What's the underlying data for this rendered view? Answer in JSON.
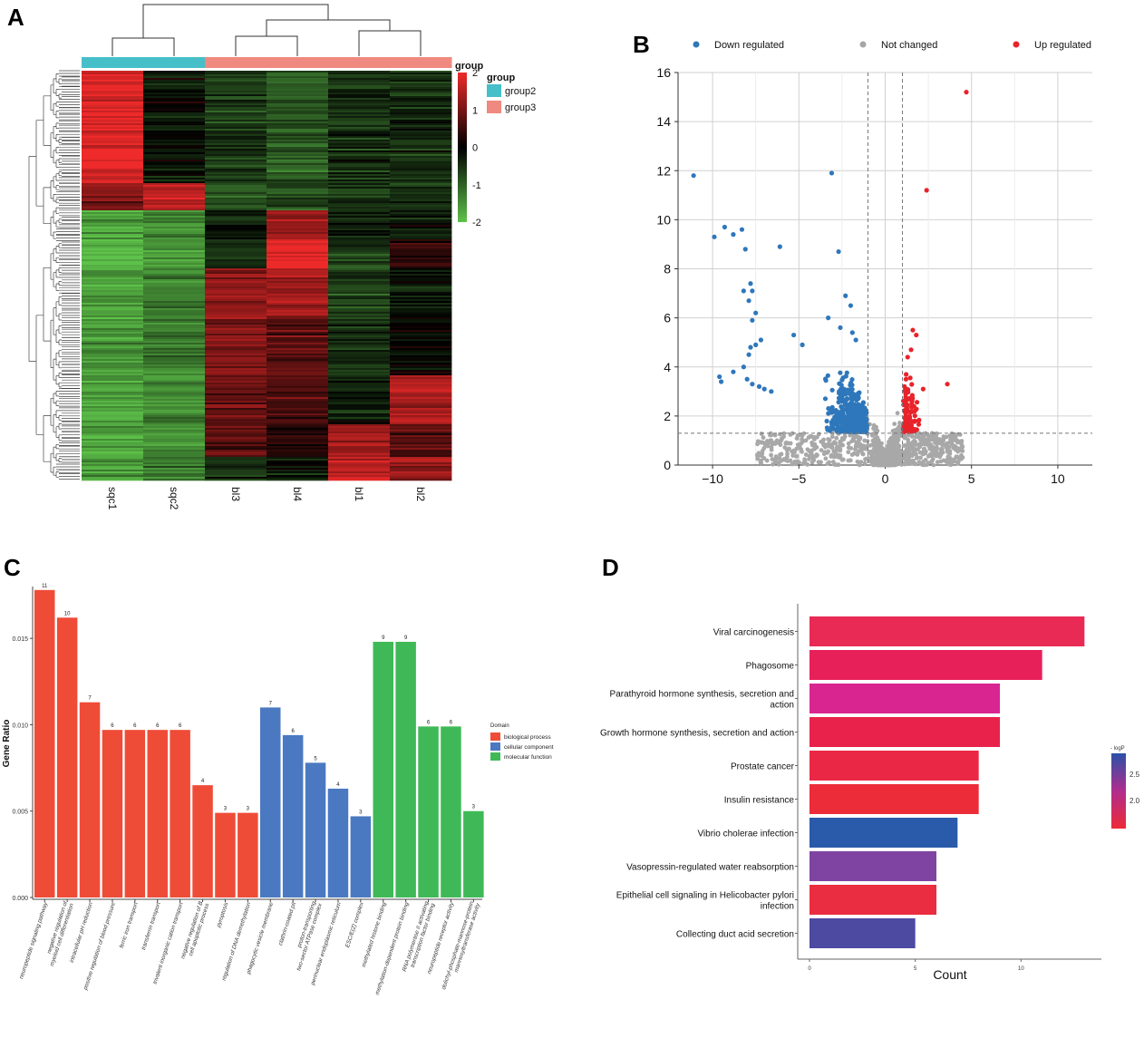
{
  "panels": {
    "A": "A",
    "B": "B",
    "C": "C",
    "D": "D"
  },
  "chart_data": [
    {
      "panel": "A",
      "type": "heatmap",
      "title": "",
      "columns": [
        "sqc1",
        "sqc2",
        "bl3",
        "bl4",
        "bl1",
        "bl2"
      ],
      "column_groups": [
        "group2",
        "group2",
        "group3",
        "group3",
        "group3",
        "group3"
      ],
      "annotation_title": "group",
      "color_scale": {
        "ticks": [
          2,
          1,
          0,
          -1,
          -2
        ],
        "low": "#5ec24a",
        "mid": "#000000",
        "high": "#ee2a2a"
      },
      "group_legend": {
        "title": "group",
        "items": [
          {
            "label": "group2",
            "color": "#46bfc9"
          },
          {
            "label": "group3",
            "color": "#f0897f"
          }
        ]
      },
      "blocks": [
        {
          "rows": 0.27,
          "values": [
            1.9,
            -0.2,
            -0.6,
            -0.9,
            -0.5,
            -0.4
          ]
        },
        {
          "rows": 0.07,
          "values": [
            1.0,
            1.6,
            -0.9,
            -0.7,
            -0.6,
            -0.6
          ]
        },
        {
          "rows": 0.07,
          "values": [
            -1.7,
            -1.4,
            -0.3,
            1.3,
            -0.4,
            -0.3
          ]
        },
        {
          "rows": 0.07,
          "values": [
            -1.8,
            -1.5,
            -0.5,
            2.0,
            -0.6,
            0.3
          ]
        },
        {
          "rows": 0.12,
          "values": [
            -1.6,
            -1.3,
            1.2,
            1.3,
            -0.7,
            -0.3
          ]
        },
        {
          "rows": 0.14,
          "values": [
            -1.5,
            -1.2,
            1.1,
            0.8,
            -0.5,
            -0.1
          ]
        },
        {
          "rows": 0.12,
          "values": [
            -1.6,
            -1.4,
            0.9,
            0.6,
            -0.3,
            1.4
          ]
        },
        {
          "rows": 0.08,
          "values": [
            -1.7,
            -1.5,
            0.7,
            0.3,
            1.3,
            0.8
          ]
        },
        {
          "rows": 0.06,
          "values": [
            -1.5,
            -1.3,
            -0.5,
            -0.2,
            1.6,
            1.2
          ]
        }
      ]
    },
    {
      "panel": "B",
      "type": "scatter",
      "title": "",
      "xlabel": "",
      "ylabel": "",
      "xlim": [
        -12,
        12
      ],
      "ylim": [
        0,
        16
      ],
      "xticks": [
        -10,
        -5,
        0,
        5,
        10
      ],
      "yticks": [
        0,
        2,
        4,
        6,
        8,
        10,
        12,
        14,
        16
      ],
      "vlines": [
        -1,
        1
      ],
      "hline": 1.3,
      "grid": true,
      "legend": [
        {
          "label": "Down regulated",
          "color": "#2e77bb"
        },
        {
          "label": "Not changed",
          "color": "#a6a6a6"
        },
        {
          "label": "Up regulated",
          "color": "#e8232a"
        }
      ],
      "series": [
        {
          "name": "Down regulated",
          "color": "#2e77bb",
          "points": [
            [
              -11.1,
              11.8
            ],
            [
              -3.1,
              11.9
            ],
            [
              -9.9,
              9.3
            ],
            [
              -9.3,
              9.7
            ],
            [
              -8.8,
              9.4
            ],
            [
              -8.3,
              9.6
            ],
            [
              -8.1,
              8.8
            ],
            [
              -6.1,
              8.9
            ],
            [
              -2.7,
              8.7
            ],
            [
              -8.2,
              7.1
            ],
            [
              -7.8,
              7.4
            ],
            [
              -7.7,
              7.1
            ],
            [
              -7.9,
              6.7
            ],
            [
              -7.5,
              6.2
            ],
            [
              -7.7,
              5.9
            ],
            [
              -7.2,
              5.1
            ],
            [
              -7.5,
              4.9
            ],
            [
              -7.8,
              4.8
            ],
            [
              -7.9,
              4.5
            ],
            [
              -8.2,
              4.0
            ],
            [
              -8.8,
              3.8
            ],
            [
              -9.6,
              3.6
            ],
            [
              -9.5,
              3.4
            ],
            [
              -8.0,
              3.5
            ],
            [
              -7.7,
              3.3
            ],
            [
              -7.3,
              3.2
            ],
            [
              -7.0,
              3.1
            ],
            [
              -6.6,
              3.0
            ],
            [
              -5.3,
              5.3
            ],
            [
              -4.8,
              4.9
            ],
            [
              -2.3,
              6.9
            ],
            [
              -2.0,
              6.5
            ],
            [
              -3.3,
              6.0
            ],
            [
              -2.6,
              5.6
            ],
            [
              -1.9,
              5.4
            ],
            [
              -1.7,
              5.1
            ]
          ]
        },
        {
          "name": "Up regulated",
          "color": "#e8232a",
          "points": [
            [
              4.7,
              15.2
            ],
            [
              2.4,
              11.2
            ],
            [
              1.6,
              5.5
            ],
            [
              1.8,
              5.3
            ],
            [
              1.5,
              4.7
            ],
            [
              1.3,
              4.4
            ],
            [
              3.6,
              3.3
            ],
            [
              2.2,
              3.1
            ],
            [
              1.2,
              2.0
            ]
          ]
        }
      ]
    },
    {
      "panel": "C",
      "type": "bar",
      "title": "",
      "xlabel": "",
      "ylabel": "Gene Ratio",
      "ylim": [
        0,
        0.018
      ],
      "yticks": [
        0.0,
        0.005,
        0.01,
        0.015
      ],
      "ytick_labels": [
        "0.000",
        "0.005",
        "0.010",
        "0.015"
      ],
      "legend": {
        "title": "Domain",
        "items": [
          {
            "label": "biological process",
            "color": "#ef4c37"
          },
          {
            "label": "cellular component",
            "color": "#4b79c1"
          },
          {
            "label": "molecular function",
            "color": "#3fb957"
          }
        ]
      },
      "categories": [
        "neuropeptide signaling pathway",
        "negative regulation of myeloid cell differentiation",
        "intracellular pH reduction",
        "positive regulation of blood pressure",
        "ferric iron transport",
        "transferrin transport",
        "trivalent inorganic cation transport",
        "negative regulation of B cell apoptotic process",
        "pyroptosis",
        "regulation of DNA demethylation",
        "phagocytic vesicle membrane",
        "clathrin-coated pit",
        "proton-transporting two-sector ATPase complex",
        "perinuclear endoplasmic reticulum",
        "ESC/E(Z) complex",
        "methylated histone binding",
        "methylation-dependent protein binding",
        "RNA polymerase II activating transcription factor binding",
        "neuropeptide receptor activity",
        "dolichyl-phosphate-mannose-protein mannosyltransferase activity"
      ],
      "values": [
        0.0178,
        0.0162,
        0.0113,
        0.0097,
        0.0097,
        0.0097,
        0.0097,
        0.0065,
        0.0049,
        0.0049,
        0.011,
        0.0094,
        0.0078,
        0.0063,
        0.0047,
        0.0148,
        0.0148,
        0.0099,
        0.0099,
        0.005
      ],
      "counts": [
        "11",
        "10",
        "7",
        "6",
        "6",
        "6",
        "6",
        "4",
        "3",
        "3",
        "7",
        "6",
        "5",
        "4",
        "3",
        "9",
        "9",
        "6",
        "6",
        "3"
      ],
      "domains": [
        "biological process",
        "biological process",
        "biological process",
        "biological process",
        "biological process",
        "biological process",
        "biological process",
        "biological process",
        "biological process",
        "biological process",
        "cellular component",
        "cellular component",
        "cellular component",
        "cellular component",
        "cellular component",
        "molecular function",
        "molecular function",
        "molecular function",
        "molecular function",
        "molecular function"
      ]
    },
    {
      "panel": "D",
      "type": "bar",
      "orientation": "horizontal",
      "title": "",
      "xlabel": "Count",
      "ylabel": "",
      "xlim": [
        0,
        13.8
      ],
      "xticks": [
        0,
        5,
        10
      ],
      "categories": [
        "Viral carcinogenesis",
        "Phagosome",
        "Parathyroid hormone synthesis, secretion and action",
        "Growth hormone synthesis, secretion and action",
        "Prostate cancer",
        "Insulin resistance",
        "Vibrio cholerae infection",
        "Vasopressin-regulated water reabsorption",
        "Epithelial cell signaling in Helicobacter pylori infection",
        "Collecting duct acid secretion"
      ],
      "values": [
        13,
        11,
        9,
        9,
        8,
        8,
        7,
        6,
        6,
        5
      ],
      "colors": [
        "#e82a55",
        "#e8205a",
        "#d92590",
        "#e8224a",
        "#ea2845",
        "#ec2c38",
        "#2a5aaa",
        "#7f44a2",
        "#ea2d40",
        "#4d4aa2"
      ],
      "colorbar": {
        "title": "- logP",
        "ticks": [
          "2.5",
          "2.0"
        ],
        "low": "#ee2a36",
        "high": "#2a50a8"
      }
    }
  ]
}
